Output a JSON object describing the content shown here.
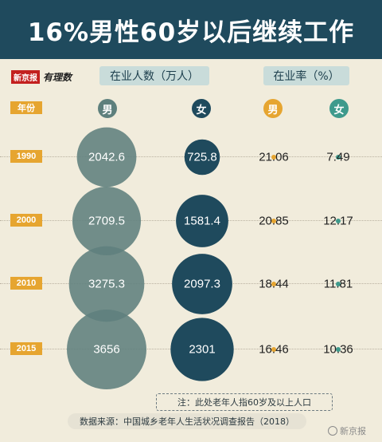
{
  "header": {
    "title": "16%男性60岁以后继续工作"
  },
  "brand": {
    "paper": "新京报",
    "column": "有理数"
  },
  "columns": {
    "count_header": "在业人数（万人）",
    "rate_header": "在业率（%）",
    "year_label": "年份",
    "male": "男",
    "female": "女"
  },
  "colors": {
    "header_bg": "#1f4a5d",
    "male_bubble": "#5e807d",
    "female_bubble": "#1f4a5d",
    "year_tag": "#e6a530",
    "male_rate_dot": "#e6a530",
    "female_rate_dot": "#3e9a8c",
    "rate_male_disc": "#e6a530",
    "rate_female_disc": "#3e9a8c"
  },
  "chart_data": {
    "type": "bubble",
    "title": "16%男性60岁以后继续工作",
    "categories": [
      "1990",
      "2000",
      "2010",
      "2015"
    ],
    "series": [
      {
        "name": "男",
        "group": "在业人数（万人）",
        "values": [
          2042.6,
          2709.5,
          3275.3,
          3656
        ]
      },
      {
        "name": "女",
        "group": "在业人数（万人）",
        "values": [
          725.8,
          1581.4,
          2097.3,
          2301
        ]
      },
      {
        "name": "男",
        "group": "在业率（%）",
        "values": [
          21.06,
          20.85,
          18.44,
          16.46
        ]
      },
      {
        "name": "女",
        "group": "在业率（%）",
        "values": [
          7.49,
          12.17,
          11.81,
          10.36
        ]
      }
    ]
  },
  "footer": {
    "note": "注：此处老年人指60岁及以上人口",
    "source": "数据来源：中国城乡老年人生活状况调查报告（2018）",
    "watermark": "新京报"
  }
}
